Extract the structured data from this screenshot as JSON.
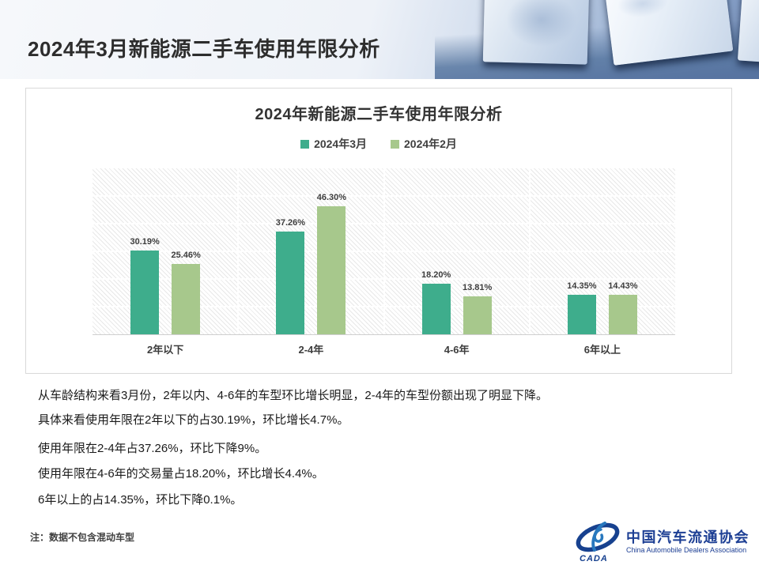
{
  "slide_title": "2024年3月新能源二手车使用年限分析",
  "chart_data": {
    "type": "bar",
    "title": "2024年新能源二手车使用年限分析",
    "categories": [
      "2年以下",
      "2-4年",
      "4-6年",
      "6年以上"
    ],
    "series": [
      {
        "name": "2024年3月",
        "color": "#3EAD8C",
        "values": [
          30.19,
          37.26,
          18.2,
          14.35
        ]
      },
      {
        "name": "2024年2月",
        "color": "#A7C88C",
        "values": [
          25.46,
          46.3,
          13.81,
          14.43
        ]
      }
    ],
    "value_suffix": "%",
    "ylim": [
      0,
      60
    ],
    "gridline_step": 10,
    "grid": true,
    "legend_position": "top",
    "plot_background": "diagonal-hatch",
    "data_labels": true
  },
  "analysis": {
    "lines": [
      "从车龄结构来看3月份，2年以内、4-6年的车型环比增长明显，2-4年的车型份额出现了明显下降。",
      "具体来看使用年限在2年以下的占30.19%，环比增长4.7%。",
      "使用年限在2-4年占37.26%，环比下降9%。",
      "使用年限在4-6年的交易量占18.20%，环比增长4.4%。",
      "6年以上的占14.35%，环比下降0.1%。"
    ]
  },
  "footnote": "注：数据不包含混动车型",
  "logo": {
    "acronym": "CADA",
    "name_cn": "中国汽车流通协会",
    "name_en": "China Automobile Dealers Association",
    "color": "#1D3F94"
  }
}
